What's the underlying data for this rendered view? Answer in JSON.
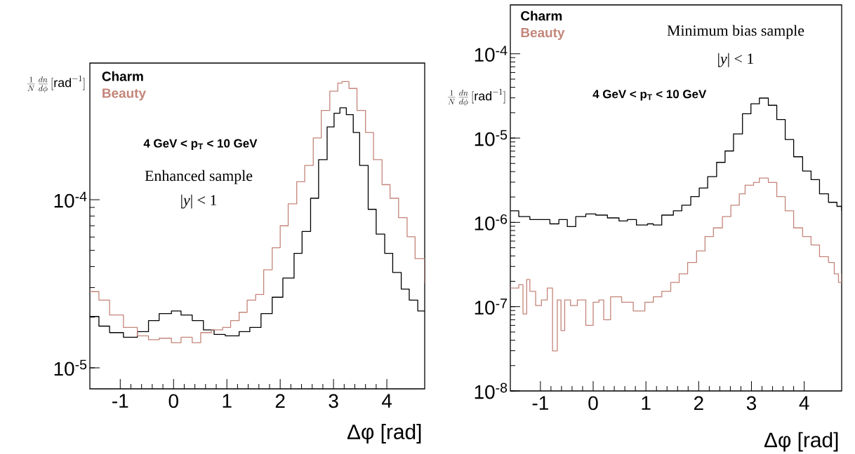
{
  "chart_data": [
    {
      "type": "step",
      "ylabel": "\\frac{1}{N}\\,\\frac{dn}{d\\phi}\\,[\\mathrm{rad}^{-1}]",
      "xlabel": "Δφ [rad]",
      "log": "y",
      "legend": "top left",
      "grid": false,
      "marker": "none",
      "line_style": "solid",
      "annotations": [
        "4 GeV < p$_{T}$ < 10 GeV",
        "Enhanced sample",
        "|*y*| < 1"
      ],
      "xlim": [
        -1.57,
        4.71
      ],
      "ylim": [
        7.5e-06,
        0.00065
      ],
      "xticks": [
        -1,
        0,
        1,
        2,
        3,
        4
      ],
      "yticks": [
        {
          "value": 1e-05,
          "label": "10$^{-5}$"
        },
        {
          "value": 0.0001,
          "label": "10$^{-4}$"
        }
      ],
      "series": [
        {
          "name": "Charm",
          "color": "#000000",
          "x": [
            -1.57,
            -1.4,
            -1.2,
            -0.94,
            -0.68,
            -0.47,
            -0.27,
            -0.04,
            0.14,
            0.35,
            0.56,
            0.76,
            0.97,
            1.23,
            1.43,
            1.64,
            1.85,
            2.05,
            2.26,
            2.41,
            2.57,
            2.72,
            2.88,
            3.01,
            3.12,
            3.24,
            3.37,
            3.49,
            3.65,
            3.8,
            3.96,
            4.11,
            4.27,
            4.42,
            4.58,
            4.71
          ],
          "values": [
            2.02e-05,
            1.77e-05,
            1.62e-05,
            1.52e-05,
            1.64e-05,
            1.91e-05,
            2.1e-05,
            2.18e-05,
            2.06e-05,
            1.91e-05,
            1.68e-05,
            1.58e-05,
            1.55e-05,
            1.64e-05,
            1.74e-05,
            2.1e-05,
            2.63e-05,
            3.42e-05,
            4.8e-05,
            6.48e-05,
            0.000102,
            0.000173,
            0.000271,
            0.000327,
            0.000352,
            0.000321,
            0.000251,
            0.00016,
            8.77e-05,
            6.25e-05,
            4.8e-05,
            3.69e-05,
            2.94e-05,
            2.53e-05,
            2.18e-05,
            2.18e-05
          ]
        },
        {
          "name": "Beauty",
          "color": "#c4857a",
          "x": [
            -1.57,
            -1.4,
            -1.2,
            -0.94,
            -0.68,
            -0.47,
            -0.27,
            -0.04,
            0.14,
            0.35,
            0.51,
            0.71,
            0.92,
            1.07,
            1.23,
            1.38,
            1.54,
            1.69,
            1.85,
            2.0,
            2.15,
            2.31,
            2.46,
            2.62,
            2.77,
            2.93,
            3.08,
            3.16,
            3.29,
            3.44,
            3.6,
            3.75,
            3.91,
            4.06,
            4.22,
            4.38,
            4.53,
            4.71
          ],
          "values": [
            2.84e-05,
            2.53e-05,
            2.06e-05,
            1.74e-05,
            1.55e-05,
            1.47e-05,
            1.5e-05,
            1.41e-05,
            1.52e-05,
            1.41e-05,
            1.62e-05,
            1.68e-05,
            1.74e-05,
            1.91e-05,
            2.14e-05,
            2.53e-05,
            2.73e-05,
            3.83e-05,
            5.18e-05,
            7e-05,
            9.45e-05,
            0.000128,
            0.00016,
            0.000233,
            0.00034,
            0.000442,
            0.000494,
            0.000505,
            0.000459,
            0.00034,
            0.000251,
            0.000173,
            0.000123,
            0.000102,
            7.83e-05,
            6.02e-05,
            4.46e-05,
            3.18e-05
          ]
        }
      ]
    },
    {
      "type": "step",
      "ylabel": "\\frac{1}{N}\\,\\frac{dn}{d\\phi}\\,[\\mathrm{rad}^{-1}]",
      "xlabel": "Δφ [rad]",
      "log": "y",
      "legend": "top left",
      "grid": false,
      "marker": "none",
      "line_style": "solid",
      "annotations": [
        "Minimum bias sample",
        "|*y*| < 1",
        "4 GeV < p$_{T}$ < 10 GeV"
      ],
      "xlim": [
        -1.57,
        4.71
      ],
      "ylim": [
        1e-08,
        0.00038
      ],
      "xticks": [
        -1,
        0,
        1,
        2,
        3,
        4
      ],
      "yticks": [
        {
          "value": 1e-08,
          "label": "10$^{-8}$"
        },
        {
          "value": 1e-07,
          "label": "10$^{-7}$"
        },
        {
          "value": 1e-06,
          "label": "10$^{-6}$"
        },
        {
          "value": 1e-05,
          "label": "10$^{-5}$"
        },
        {
          "value": 0.0001,
          "label": "10$^{-4}$"
        }
      ],
      "series": [
        {
          "name": "Charm",
          "color": "#000000",
          "x": [
            -1.57,
            -1.41,
            -1.2,
            -0.98,
            -0.82,
            -0.65,
            -0.49,
            -0.33,
            -0.14,
            0.05,
            0.27,
            0.49,
            0.65,
            0.82,
            1.03,
            1.14,
            1.3,
            1.52,
            1.68,
            1.85,
            2.01,
            2.17,
            2.34,
            2.5,
            2.66,
            2.83,
            2.99,
            3.15,
            3.32,
            3.48,
            3.64,
            3.8,
            3.97,
            4.13,
            4.29,
            4.46,
            4.62,
            4.71
          ],
          "values": [
            1.37e-06,
            1.17e-06,
            1.08e-06,
            1.08e-06,
            9.6e-07,
            1.08e-06,
            8.9e-07,
            1.17e-06,
            1.26e-06,
            1.22e-06,
            1.13e-06,
            1.04e-06,
            1.08e-06,
            9.3e-07,
            9.6e-07,
            9.3e-07,
            1.22e-06,
            1.37e-06,
            1.6e-06,
            2.02e-06,
            2.55e-06,
            3.49e-06,
            5.15e-06,
            7.03e-06,
            1.12e-05,
            1.94e-05,
            2.55e-05,
            2.98e-05,
            2.45e-05,
            1.66e-05,
            9.6e-06,
            6e-06,
            4.07e-06,
            3.22e-06,
            2.18e-06,
            1.73e-06,
            1.55e-06,
            1.37e-06
          ]
        },
        {
          "name": "Beauty",
          "color": "#c4857a",
          "x": [
            -1.57,
            -1.41,
            -1.33,
            -1.26,
            -1.2,
            -1.09,
            -0.98,
            -0.87,
            -0.77,
            -0.68,
            -0.61,
            -0.54,
            -0.43,
            -0.3,
            -0.14,
            0.0,
            0.11,
            0.2,
            0.33,
            0.54,
            0.76,
            0.98,
            1.14,
            1.3,
            1.47,
            1.63,
            1.79,
            1.96,
            2.12,
            2.28,
            2.45,
            2.61,
            2.77,
            2.88,
            3.04,
            3.15,
            3.32,
            3.48,
            3.64,
            3.8,
            3.97,
            4.13,
            4.29,
            4.46,
            4.57,
            4.65,
            4.71
          ],
          "values": [
            1.66e-07,
            1.82e-07,
            8.2e-08,
            2.1e-07,
            1.52e-07,
            1.03e-07,
            1.2e-07,
            1.66e-07,
            2.99e-08,
            1.2e-07,
            5.2e-08,
            1.2e-07,
            1.03e-07,
            1.2e-07,
            6e-08,
            1.13e-07,
            1.2e-07,
            7e-08,
            1.31e-07,
            1.13e-07,
            8.9e-08,
            1.13e-07,
            1.31e-07,
            1.52e-07,
            1.94e-07,
            2.45e-07,
            3.35e-07,
            4.58e-07,
            6.8e-07,
            8.6e-07,
            1.17e-06,
            1.6e-06,
            2.18e-06,
            2.76e-06,
            2.98e-06,
            3.35e-06,
            2.98e-06,
            2.02e-06,
            1.37e-06,
            8.6e-07,
            6.8e-07,
            5.4e-07,
            3.92e-07,
            3.35e-07,
            2.45e-07,
            1.94e-07,
            2.45e-07
          ]
        }
      ]
    }
  ]
}
